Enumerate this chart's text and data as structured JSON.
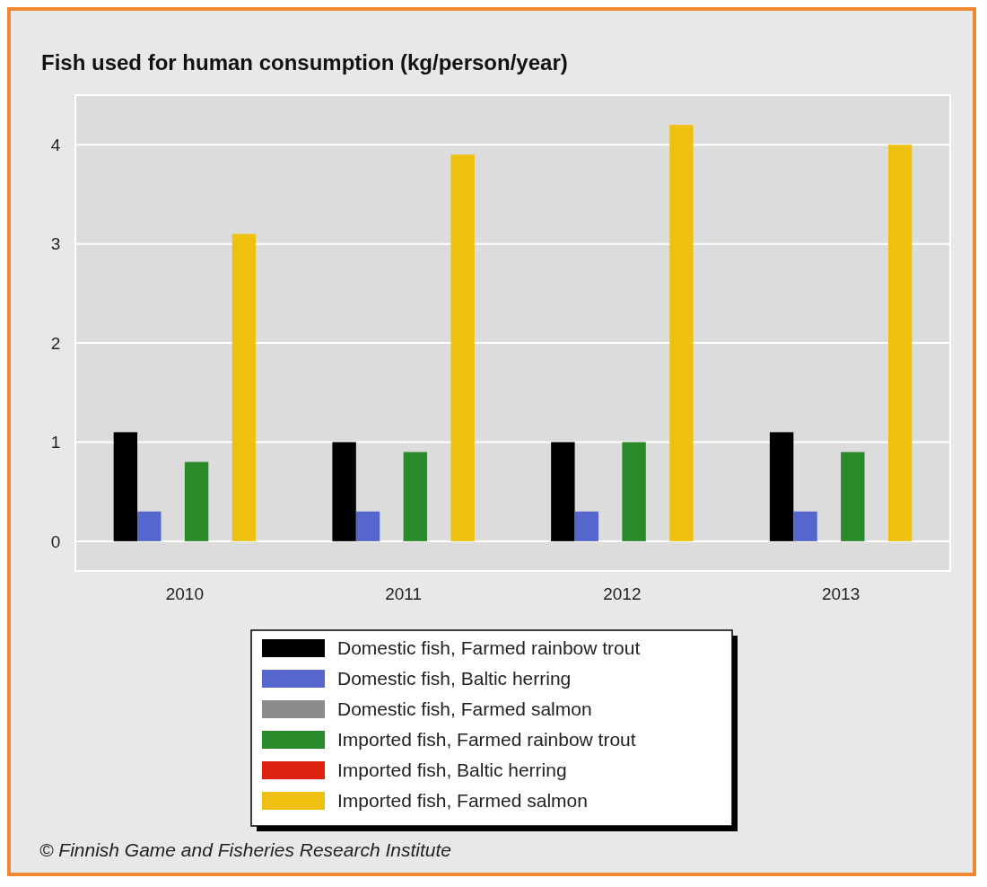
{
  "chart_data": {
    "type": "bar",
    "title": "Fish used for human consumption (kg/person/year)",
    "categories": [
      "2010",
      "2011",
      "2012",
      "2013"
    ],
    "series": [
      {
        "name": "Domestic fish, Farmed rainbow trout",
        "color": "#000000",
        "values": [
          1.1,
          1.0,
          1.0,
          1.1
        ]
      },
      {
        "name": "Domestic fish, Baltic herring",
        "color": "#5566cc",
        "values": [
          0.3,
          0.3,
          0.3,
          0.3
        ]
      },
      {
        "name": "Domestic fish, Farmed salmon",
        "color": "#8c8c8c",
        "values": [
          0,
          0,
          0,
          0
        ]
      },
      {
        "name": "Imported fish, Farmed rainbow trout",
        "color": "#2a8a2a",
        "values": [
          0.8,
          0.9,
          1.0,
          0.9
        ]
      },
      {
        "name": "Imported fish, Baltic herring",
        "color": "#dd2211",
        "values": [
          0,
          0,
          0,
          0
        ]
      },
      {
        "name": "Imported fish, Farmed salmon",
        "color": "#eec111",
        "values": [
          3.1,
          3.9,
          4.2,
          4.0
        ]
      }
    ],
    "ylim": [
      -0.3,
      4.5
    ],
    "yticks": [
      0,
      1,
      2,
      3,
      4
    ],
    "grid": "y",
    "legend": "bottom",
    "annotations": [
      "© Finnish Game and Fisheries Research Institute"
    ]
  }
}
